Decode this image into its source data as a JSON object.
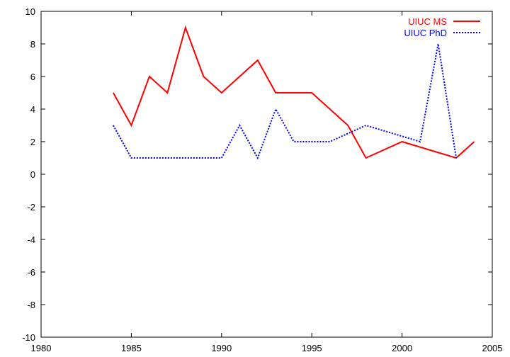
{
  "chart_data": {
    "type": "line",
    "title": "",
    "xlabel": "",
    "ylabel": "",
    "xlim": [
      1980,
      2005
    ],
    "ylim": [
      -10,
      10
    ],
    "xticks": [
      1980,
      1985,
      1990,
      1995,
      2000,
      2005
    ],
    "yticks": [
      -10,
      -8,
      -6,
      -4,
      -2,
      0,
      2,
      4,
      6,
      8,
      10
    ],
    "grid": false,
    "legend_position": "top-right",
    "series": [
      {
        "name": "UIUC MS",
        "color": "#ff0000",
        "style": "solid",
        "points": [
          [
            1984,
            5
          ],
          [
            1985,
            3
          ],
          [
            1986,
            6
          ],
          [
            1987,
            5
          ],
          [
            1988,
            9
          ],
          [
            1989,
            6
          ],
          [
            1990,
            5
          ],
          [
            1992,
            7
          ],
          [
            1993,
            5
          ],
          [
            1995,
            5
          ],
          [
            1997,
            3
          ],
          [
            1998,
            1
          ],
          [
            2000,
            2
          ],
          [
            2003,
            1
          ],
          [
            2004,
            2
          ]
        ]
      },
      {
        "name": "UIUC PhD",
        "color": "#0000ff",
        "style": "dotted",
        "points": [
          [
            1984,
            3
          ],
          [
            1985,
            1
          ],
          [
            1990,
            1
          ],
          [
            1991,
            3
          ],
          [
            1992,
            1
          ],
          [
            1993,
            4
          ],
          [
            1994,
            2
          ],
          [
            1996,
            2
          ],
          [
            1998,
            3
          ],
          [
            2001,
            2
          ],
          [
            2002,
            8
          ],
          [
            2003,
            1
          ]
        ]
      }
    ]
  }
}
